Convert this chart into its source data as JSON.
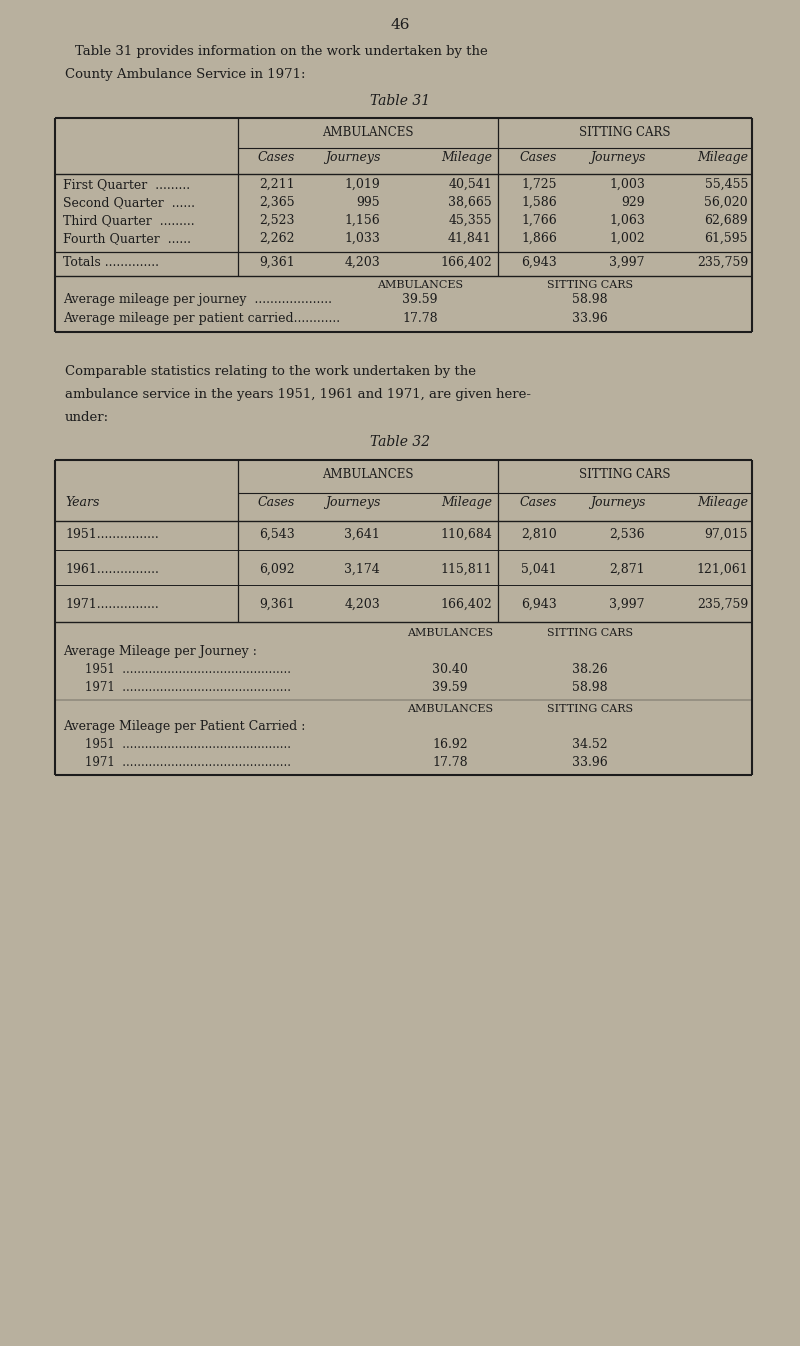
{
  "bg_color": "#b8b09e",
  "text_color": "#1c1c1c",
  "page_number": "46",
  "intro_text_line1": "Table 31 provides information on the work undertaken by the",
  "intro_text_line2": "County Ambulance Service in 1971:",
  "table31_title": "Table 31",
  "table31": {
    "rows": [
      {
        "label": "First Quarter  .........",
        "amb_cases": "2,211",
        "amb_journeys": "1,019",
        "amb_mileage": "40,541",
        "sit_cases": "1,725",
        "sit_journeys": "1,003",
        "sit_mileage": "55,455"
      },
      {
        "label": "Second Quarter  ......",
        "amb_cases": "2,365",
        "amb_journeys": "995",
        "amb_mileage": "38,665",
        "sit_cases": "1,586",
        "sit_journeys": "929",
        "sit_mileage": "56,020"
      },
      {
        "label": "Third Quarter  .........",
        "amb_cases": "2,523",
        "amb_journeys": "1,156",
        "amb_mileage": "45,355",
        "sit_cases": "1,766",
        "sit_journeys": "1,063",
        "sit_mileage": "62,689"
      },
      {
        "label": "Fourth Quarter  ......",
        "amb_cases": "2,262",
        "amb_journeys": "1,033",
        "amb_mileage": "41,841",
        "sit_cases": "1,866",
        "sit_journeys": "1,002",
        "sit_mileage": "61,595"
      }
    ],
    "totals": {
      "amb_cases": "9,361",
      "amb_journeys": "4,203",
      "amb_mileage": "166,402",
      "sit_cases": "6,943",
      "sit_journeys": "3,997",
      "sit_mileage": "235,759"
    },
    "avg_journey_amb": "39.59",
    "avg_journey_sit": "58.98",
    "avg_patient_amb": "17.78",
    "avg_patient_sit": "33.96"
  },
  "intertext_line1": "Comparable statistics relating to the work undertaken by the",
  "intertext_line2": "ambulance service in the years 1951, 1961 and 1971, are given here-",
  "intertext_line3": "under:",
  "table32_title": "Table 32",
  "table32": {
    "rows": [
      {
        "label": "1951................",
        "amb_cases": "6,543",
        "amb_journeys": "3,641",
        "amb_mileage": "110,684",
        "sit_cases": "2,810",
        "sit_journeys": "2,536",
        "sit_mileage": "97,015"
      },
      {
        "label": "1961................",
        "amb_cases": "6,092",
        "amb_journeys": "3,174",
        "amb_mileage": "115,811",
        "sit_cases": "5,041",
        "sit_journeys": "2,871",
        "sit_mileage": "121,061"
      },
      {
        "label": "1971................",
        "amb_cases": "9,361",
        "amb_journeys": "4,203",
        "amb_mileage": "166,402",
        "sit_cases": "6,943",
        "sit_journeys": "3,997",
        "sit_mileage": "235,759"
      }
    ],
    "avg_journey_1951_amb": "30.40",
    "avg_journey_1951_sit": "38.26",
    "avg_journey_1971_amb": "39.59",
    "avg_journey_1971_sit": "58.98",
    "avg_patient_1951_amb": "16.92",
    "avg_patient_1951_sit": "34.52",
    "avg_patient_1971_amb": "17.78",
    "avg_patient_1971_sit": "33.96"
  }
}
